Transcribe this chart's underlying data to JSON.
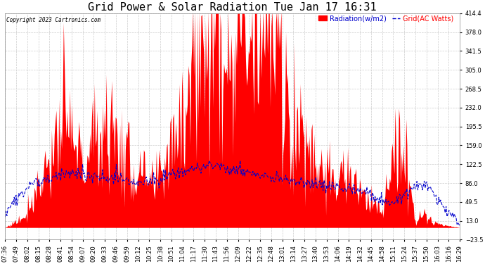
{
  "title": "Grid Power & Solar Radiation Tue Jan 17 16:31",
  "copyright": "Copyright 2023 Cartronics.com",
  "legend_radiation": "Radiation(w/m2)",
  "legend_grid": "Grid(AC Watts)",
  "ylim": [
    -23.5,
    414.4
  ],
  "yticks": [
    -23.5,
    13.0,
    49.5,
    86.0,
    122.5,
    159.0,
    195.5,
    232.0,
    268.5,
    305.0,
    341.5,
    378.0,
    414.4
  ],
  "background_color": "#ffffff",
  "grid_color": "#cccccc",
  "radiation_color": "#ff0000",
  "grid_line_color": "#0000cd",
  "title_fontsize": 11,
  "tick_fontsize": 6,
  "legend_fontsize": 7,
  "n_points": 500,
  "x_tick_labels": [
    "07:36",
    "07:49",
    "08:02",
    "08:15",
    "08:28",
    "08:41",
    "08:54",
    "09:07",
    "09:20",
    "09:33",
    "09:46",
    "09:59",
    "10:12",
    "10:25",
    "10:38",
    "10:51",
    "11:04",
    "11:17",
    "11:30",
    "11:43",
    "11:56",
    "12:09",
    "12:22",
    "12:35",
    "12:48",
    "13:01",
    "13:14",
    "13:27",
    "13:40",
    "13:53",
    "14:06",
    "14:19",
    "14:32",
    "14:45",
    "14:58",
    "15:11",
    "15:24",
    "15:37",
    "15:50",
    "16:03",
    "16:16",
    "16:29"
  ]
}
